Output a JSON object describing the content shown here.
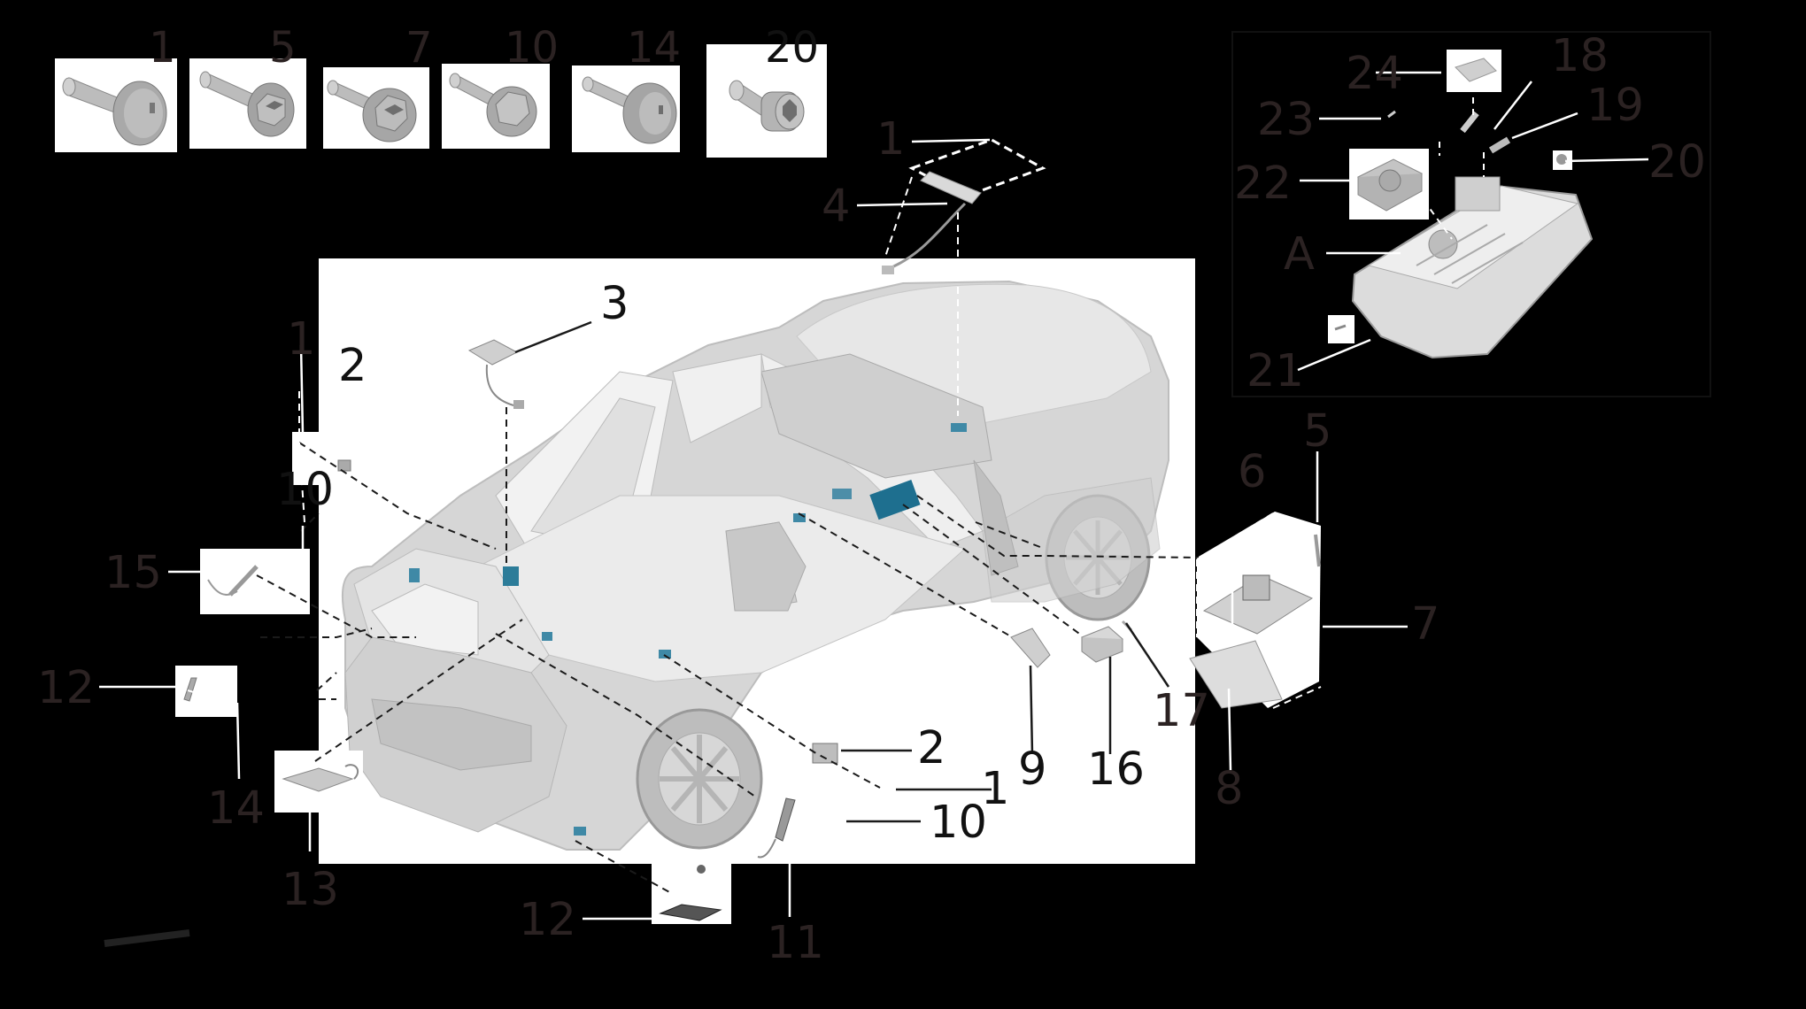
{
  "colors": {
    "background": "#000000",
    "panel": "#ffffff",
    "label_grey": "#2b2222",
    "label_dark": "#111111",
    "module_teal": "#1e6f8f",
    "car_grey": "#c9c9c9",
    "dash_line": "#1a1a1a"
  },
  "fasteners": [
    {
      "label": "1",
      "icon": "pan-head-torx-screw-icon"
    },
    {
      "label": "5",
      "icon": "flange-torx-screw-icon"
    },
    {
      "label": "7",
      "icon": "flange-hex-screw-icon"
    },
    {
      "label": "10",
      "icon": "hex-flange-bolt-icon"
    },
    {
      "label": "14",
      "icon": "dome-torx-screw-icon"
    },
    {
      "label": "20",
      "icon": "hex-socket-bolt-icon"
    }
  ],
  "callouts": {
    "c1_top": "1",
    "c4": "4",
    "c3": "3",
    "c1_left": "1",
    "c2_left": "2",
    "c10_left": "10",
    "c15": "15",
    "c12_left": "12",
    "c14": "14",
    "c13": "13",
    "c12_bottom": "12",
    "c11": "11",
    "c10_bottom": "10",
    "c1_bottom": "1",
    "c2_bottom": "2",
    "c9": "9",
    "c16": "16",
    "c17": "17",
    "c8": "8",
    "c7": "7",
    "c6": "6",
    "c5": "5"
  },
  "inset": {
    "c24": "24",
    "c18": "18",
    "c23": "23",
    "c19": "19",
    "c20": "20",
    "c22": "22",
    "cA": "A",
    "c21": "21"
  }
}
